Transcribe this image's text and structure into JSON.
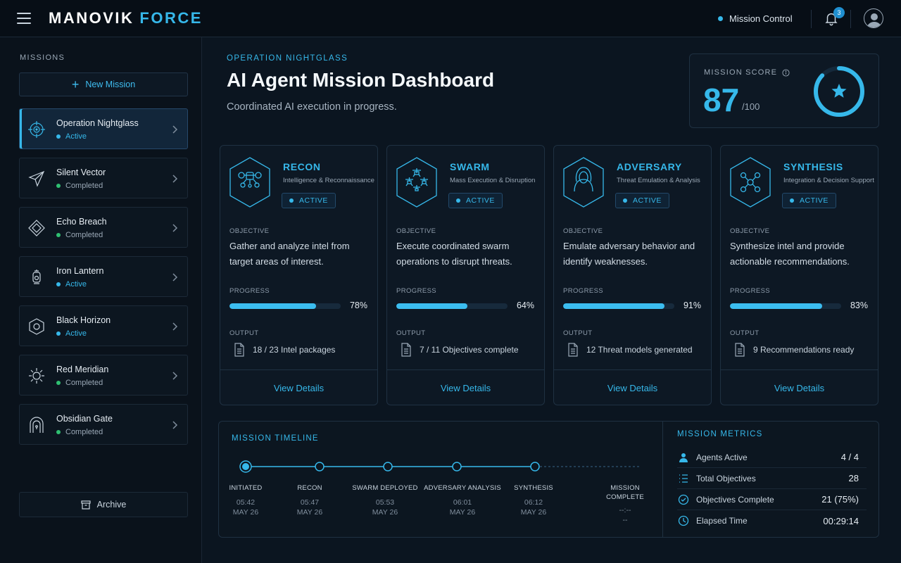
{
  "header": {
    "brand_primary": "MANOVIK",
    "brand_accent": "FORCE",
    "status_label": "Mission Control",
    "notification_count": "3"
  },
  "sidebar": {
    "heading": "MISSIONS",
    "new_mission_label": "New Mission",
    "archive_label": "Archive",
    "missions": [
      {
        "name": "Operation Nightglass",
        "status": "Active",
        "icon": "crosshair-icon",
        "selected": true
      },
      {
        "name": "Silent Vector",
        "status": "Completed",
        "icon": "paper-plane-icon",
        "selected": false
      },
      {
        "name": "Echo Breach",
        "status": "Completed",
        "icon": "diamond-icon",
        "selected": false
      },
      {
        "name": "Iron Lantern",
        "status": "Active",
        "icon": "lantern-icon",
        "selected": false
      },
      {
        "name": "Black Horizon",
        "status": "Active",
        "icon": "hexagon-icon",
        "selected": false
      },
      {
        "name": "Red Meridian",
        "status": "Completed",
        "icon": "sun-icon",
        "selected": false
      },
      {
        "name": "Obsidian Gate",
        "status": "Completed",
        "icon": "gate-icon",
        "selected": false
      }
    ]
  },
  "main": {
    "operation_label": "OPERATION NIGHTGLASS",
    "title": "AI Agent Mission Dashboard",
    "subtitle": "Coordinated AI execution in progress.",
    "score": {
      "label": "MISSION SCORE",
      "value": "87",
      "max": "/100",
      "fraction": 0.87
    }
  },
  "agents": [
    {
      "name": "RECON",
      "description": "Intelligence & Reconnaissance",
      "status": "ACTIVE",
      "icon": "drone-icon",
      "objective_label": "OBJECTIVE",
      "objective": "Gather and analyze intel from target areas of interest.",
      "progress_label": "PROGRESS",
      "progress": 78,
      "progress_text": "78%",
      "output_label": "OUTPUT",
      "output": "18 / 23 Intel packages",
      "link": "View Details"
    },
    {
      "name": "SWARM",
      "description": "Mass Execution & Disruption",
      "status": "ACTIVE",
      "icon": "drone-swarm-icon",
      "objective_label": "OBJECTIVE",
      "objective": "Execute coordinated swarm operations to disrupt threats.",
      "progress_label": "PROGRESS",
      "progress": 64,
      "progress_text": "64%",
      "output_label": "OUTPUT",
      "output": "7 / 11 Objectives complete",
      "link": "View Details"
    },
    {
      "name": "ADVERSARY",
      "description": "Threat Emulation & Analysis",
      "status": "ACTIVE",
      "icon": "hooded-figure-icon",
      "objective_label": "OBJECTIVE",
      "objective": "Emulate adversary behavior and identify weaknesses.",
      "progress_label": "PROGRESS",
      "progress": 91,
      "progress_text": "91%",
      "output_label": "OUTPUT",
      "output": "12 Threat models generated",
      "link": "View Details"
    },
    {
      "name": "SYNTHESIS",
      "description": "Integration & Decision Support",
      "status": "ACTIVE",
      "icon": "network-nodes-icon",
      "objective_label": "OBJECTIVE",
      "objective": "Synthesize intel and provide actionable recommendations.",
      "progress_label": "PROGRESS",
      "progress": 83,
      "progress_text": "83%",
      "output_label": "OUTPUT",
      "output": "9 Recommendations ready",
      "link": "View Details"
    }
  ],
  "timeline": {
    "heading": "MISSION TIMELINE",
    "stages": [
      {
        "name": "INITIATED",
        "time": "05:42",
        "date": "MAY 26",
        "state": "current"
      },
      {
        "name": "RECON",
        "time": "05:47",
        "date": "MAY 26",
        "state": "done"
      },
      {
        "name": "SWARM DEPLOYED",
        "time": "05:53",
        "date": "MAY 26",
        "state": "done"
      },
      {
        "name": "ADVERSARY ANALYSIS",
        "time": "06:01",
        "date": "MAY 26",
        "state": "done"
      },
      {
        "name": "SYNTHESIS",
        "time": "06:12",
        "date": "MAY 26",
        "state": "done"
      },
      {
        "name": "MISSION COMPLETE",
        "time": "--:--",
        "date": "--",
        "state": "pending"
      }
    ]
  },
  "metrics": {
    "heading": "MISSION METRICS",
    "rows": [
      {
        "label": "Agents Active",
        "value": "4 / 4",
        "icon": "user-icon"
      },
      {
        "label": "Total Objectives",
        "value": "28",
        "icon": "list-icon"
      },
      {
        "label": "Objectives Complete",
        "value": "21 (75%)",
        "icon": "check-circle-icon"
      },
      {
        "label": "Elapsed Time",
        "value": "00:29:14",
        "icon": "clock-icon"
      }
    ]
  },
  "colors": {
    "accent": "#36b8ea",
    "active": "#36b8ea",
    "completed": "#2fbf71",
    "background": "#0b1520"
  }
}
